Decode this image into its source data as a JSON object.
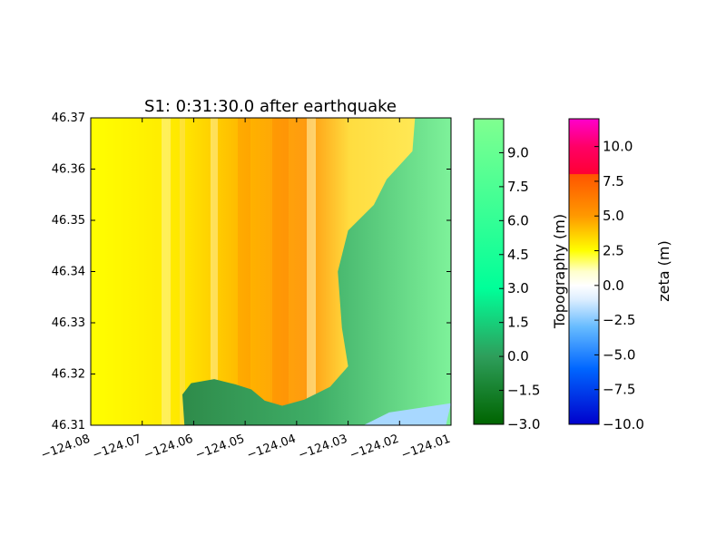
{
  "chart_data": {
    "type": "heatmap",
    "title": "S1: 0:31:30.0 after earthquake",
    "xlim": [
      -124.08,
      -124.01
    ],
    "ylim": [
      46.31,
      46.37
    ],
    "xticks": [
      {
        "value": -124.08,
        "label": "−124.08"
      },
      {
        "value": -124.07,
        "label": "−124.07"
      },
      {
        "value": -124.06,
        "label": "−124.06"
      },
      {
        "value": -124.05,
        "label": "−124.05"
      },
      {
        "value": -124.04,
        "label": "−124.04"
      },
      {
        "value": -124.03,
        "label": "−124.03"
      },
      {
        "value": -124.02,
        "label": "−124.02"
      },
      {
        "value": -124.01,
        "label": "−124.01"
      }
    ],
    "yticks": [
      {
        "value": 46.31,
        "label": "46.31"
      },
      {
        "value": 46.32,
        "label": "46.32"
      },
      {
        "value": 46.33,
        "label": "46.33"
      },
      {
        "value": 46.34,
        "label": "46.34"
      },
      {
        "value": 46.35,
        "label": "46.35"
      },
      {
        "value": 46.36,
        "label": "46.36"
      },
      {
        "value": 46.37,
        "label": "46.37"
      }
    ],
    "coastline": [
      [
        -124.0618,
        46.31
      ],
      [
        -124.0622,
        46.316
      ],
      [
        -124.0605,
        46.3182
      ],
      [
        -124.056,
        46.319
      ],
      [
        -124.052,
        46.318
      ],
      [
        -124.0488,
        46.317
      ],
      [
        -124.0462,
        46.3148
      ],
      [
        -124.0428,
        46.3138
      ],
      [
        -124.0385,
        46.315
      ],
      [
        -124.0335,
        46.3175
      ],
      [
        -124.03,
        46.3215
      ],
      [
        -124.0312,
        46.329
      ],
      [
        -124.032,
        46.34
      ],
      [
        -124.03,
        46.348
      ],
      [
        -124.025,
        46.353
      ],
      [
        -124.0225,
        46.358
      ],
      [
        -124.0175,
        46.3635
      ],
      [
        -124.017,
        46.37
      ]
    ],
    "water_body": [
      [
        -124.027,
        46.31
      ],
      [
        -124.011,
        46.31
      ],
      [
        -124.01,
        46.3143
      ],
      [
        -124.022,
        46.3125
      ]
    ],
    "colorbars": [
      {
        "label": "Topography (m)",
        "range": [
          -3.0,
          10.5
        ],
        "ticks": [
          {
            "value": -3.0,
            "label": "−3.0"
          },
          {
            "value": -1.5,
            "label": "−1.5"
          },
          {
            "value": 0.0,
            "label": "0.0"
          },
          {
            "value": 1.5,
            "label": "1.5"
          },
          {
            "value": 3.0,
            "label": "3.0"
          },
          {
            "value": 4.5,
            "label": "4.5"
          },
          {
            "value": 6.0,
            "label": "6.0"
          },
          {
            "value": 7.5,
            "label": "7.5"
          },
          {
            "value": 9.0,
            "label": "9.0"
          }
        ],
        "stops": [
          {
            "value": -3.0,
            "color": "#006400"
          },
          {
            "value": 0.0,
            "color": "#2e9e5b"
          },
          {
            "value": 3.0,
            "color": "#00ff99"
          },
          {
            "value": 10.5,
            "color": "#80ff90"
          }
        ]
      },
      {
        "label": "zeta (m)",
        "range": [
          -10.0,
          12.0
        ],
        "ticks": [
          {
            "value": -10.0,
            "label": "−10.0"
          },
          {
            "value": -7.5,
            "label": "−7.5"
          },
          {
            "value": -5.0,
            "label": "−5.0"
          },
          {
            "value": -2.5,
            "label": "−2.5"
          },
          {
            "value": 0.0,
            "label": "0.0"
          },
          {
            "value": 2.5,
            "label": "2.5"
          },
          {
            "value": 5.0,
            "label": "5.0"
          },
          {
            "value": 7.5,
            "label": "7.5"
          },
          {
            "value": 10.0,
            "label": "10.0"
          }
        ],
        "stops": [
          {
            "value": -10.0,
            "color": "#0000cc"
          },
          {
            "value": -6.0,
            "color": "#0066ff"
          },
          {
            "value": -3.0,
            "color": "#66bbff"
          },
          {
            "value": -1.0,
            "color": "#ddeeff"
          },
          {
            "value": 0.0,
            "color": "#ffffff"
          },
          {
            "value": 1.0,
            "color": "#ffffcc"
          },
          {
            "value": 2.5,
            "color": "#ffff00"
          },
          {
            "value": 5.0,
            "color": "#ff9900"
          },
          {
            "value": 8.0,
            "color": "#ff5500"
          },
          {
            "value": 8.01,
            "color": "#ff0033"
          },
          {
            "value": 10.0,
            "color": "#ff0066"
          },
          {
            "value": 12.0,
            "color": "#ff00cc"
          }
        ]
      }
    ]
  }
}
